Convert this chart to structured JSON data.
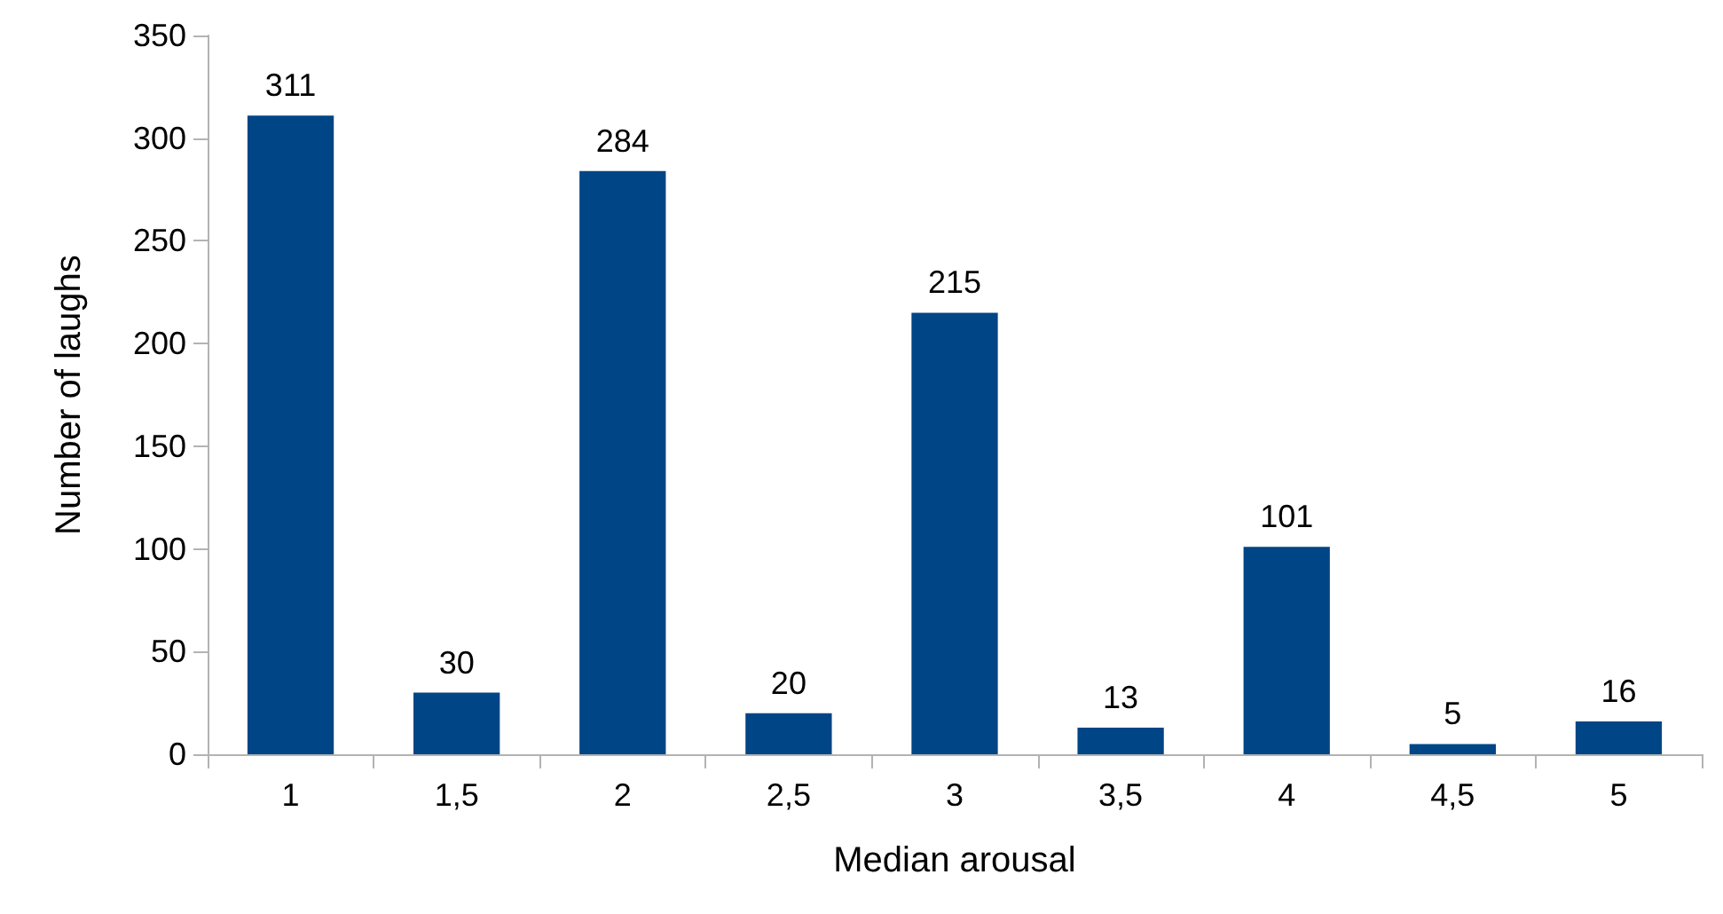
{
  "chart_data": {
    "type": "bar",
    "xlabel": "Median arousal",
    "ylabel": "Number of laughs",
    "categories": [
      "1",
      "1,5",
      "2",
      "2,5",
      "3",
      "3,5",
      "4",
      "4,5",
      "5"
    ],
    "values": [
      311,
      30,
      284,
      20,
      215,
      13,
      101,
      5,
      16
    ],
    "color": "#004586",
    "ylim": [
      0,
      350
    ],
    "yticks": [
      0,
      50,
      100,
      150,
      200,
      250,
      300,
      350
    ],
    "data_labels": true,
    "grid": false
  }
}
